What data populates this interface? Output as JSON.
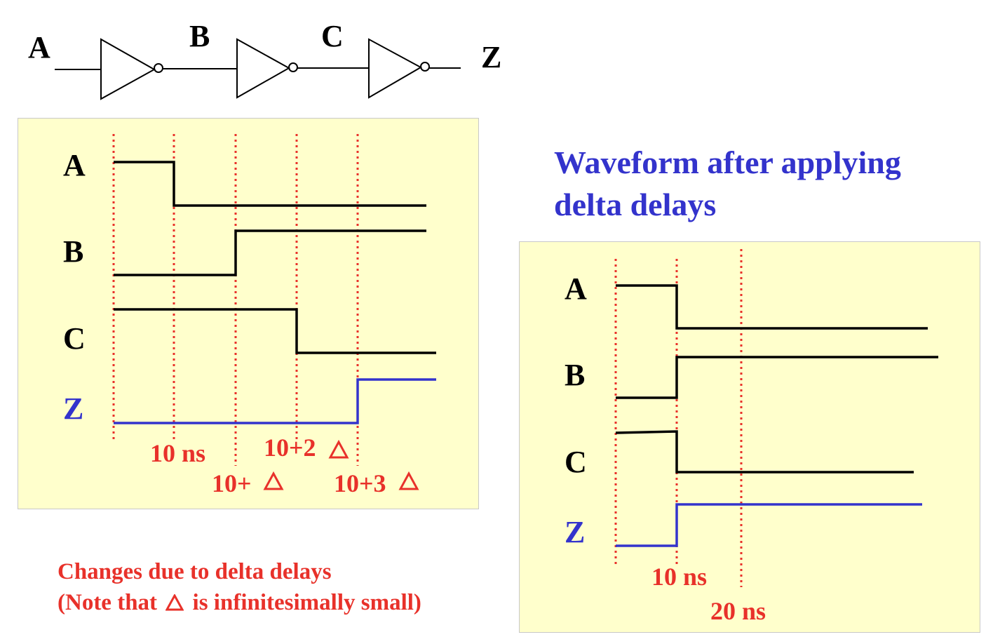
{
  "circuit": {
    "labels": [
      "A",
      "B",
      "C",
      "Z"
    ]
  },
  "left_panel": {
    "signals": [
      "A",
      "B",
      "C",
      "Z"
    ],
    "time_labels": [
      "10 ns",
      "10+2",
      "10+",
      "10+3"
    ]
  },
  "right_panel": {
    "title_line1": "Waveform after applying",
    "title_line2": "delta delays",
    "signals": [
      "A",
      "B",
      "C",
      "Z"
    ],
    "time_labels": [
      "10 ns",
      "20 ns"
    ]
  },
  "note": {
    "line1": "Changes due to delta delays",
    "line2_before": "(Note that",
    "line2_after": "is infinitesimally small)"
  },
  "colors": {
    "panel_bg": "#ffffcc",
    "accent_blue": "#3333cc",
    "accent_red": "#e8312a"
  }
}
